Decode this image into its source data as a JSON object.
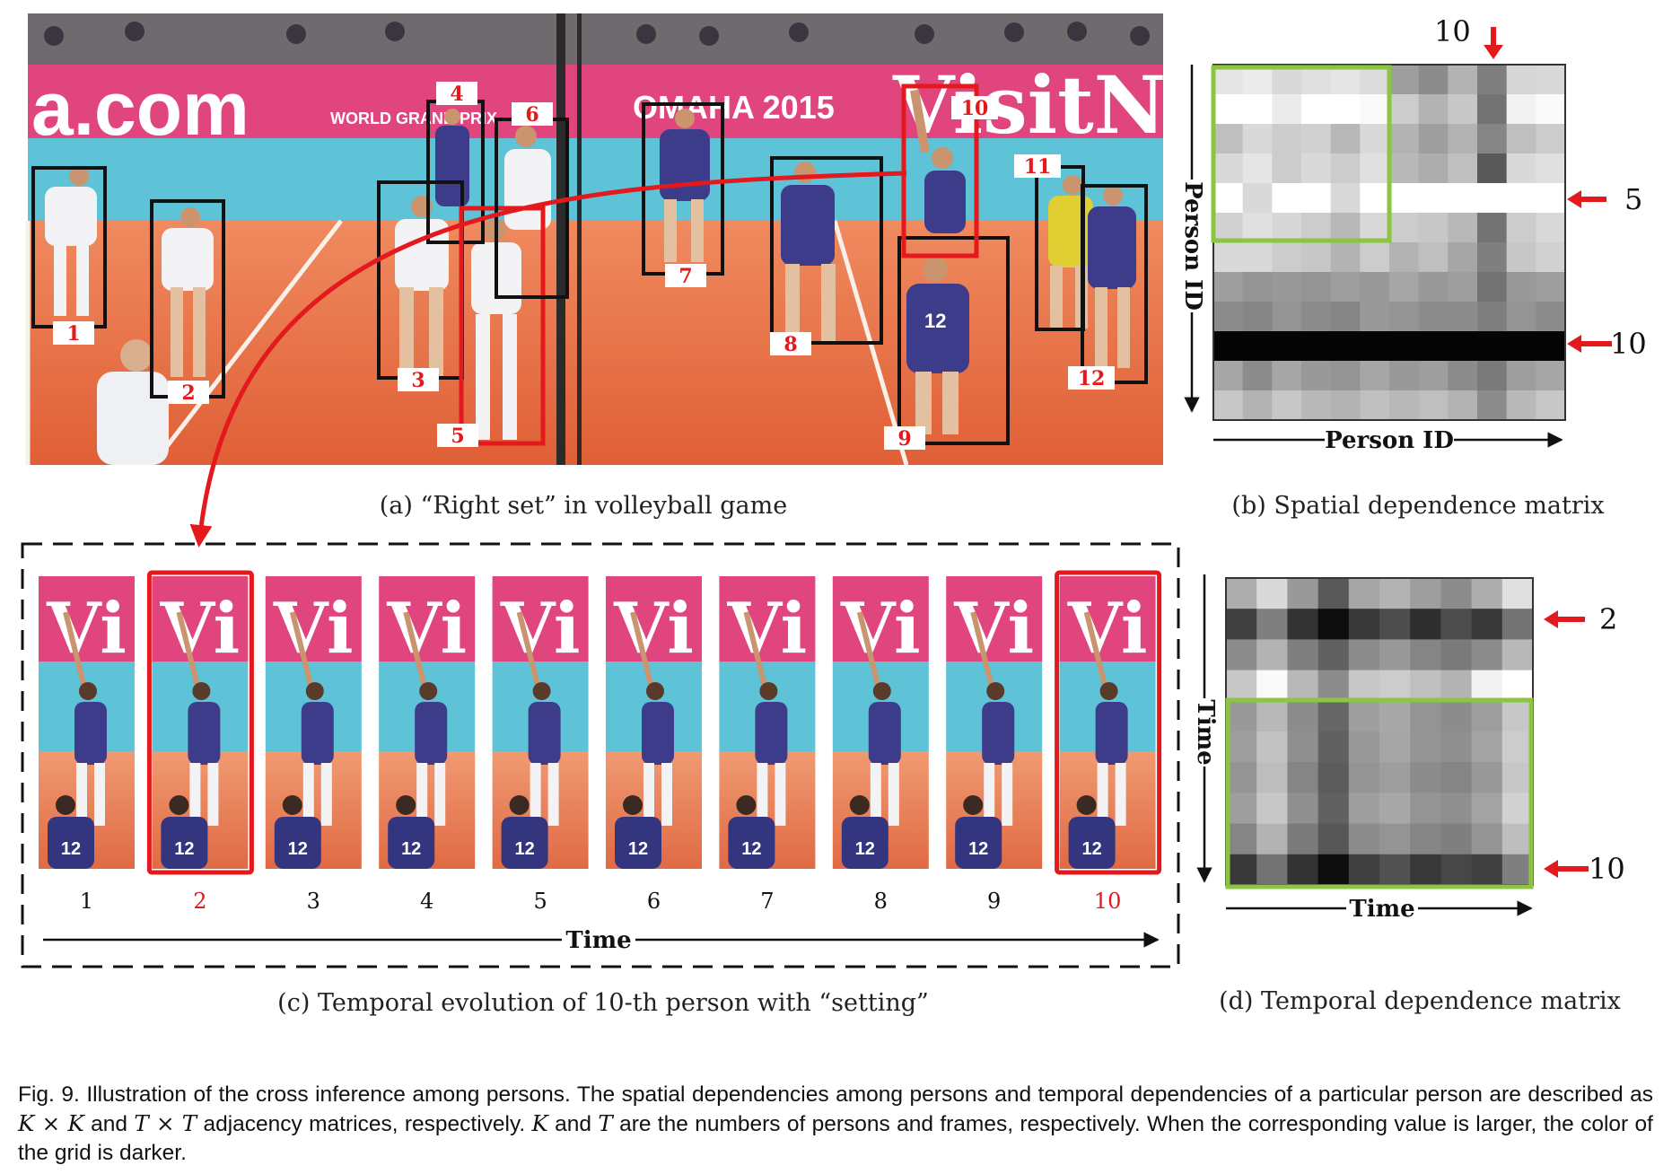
{
  "panel_a": {
    "caption": "(a) “Right set” in volleyball game",
    "banner_left": "a.com",
    "banner_mid": "WORLD GRAND PRIX",
    "banner_omaha": "OMAHA 2015",
    "banner_right": "VisitN",
    "persons": [
      {
        "id": "1",
        "highlight": false
      },
      {
        "id": "2",
        "highlight": false
      },
      {
        "id": "3",
        "highlight": false
      },
      {
        "id": "4",
        "highlight": false
      },
      {
        "id": "5",
        "highlight": true
      },
      {
        "id": "6",
        "highlight": false
      },
      {
        "id": "7",
        "highlight": false
      },
      {
        "id": "8",
        "highlight": false
      },
      {
        "id": "9",
        "highlight": false
      },
      {
        "id": "10",
        "highlight": true
      },
      {
        "id": "11",
        "highlight": false
      },
      {
        "id": "12",
        "highlight": false
      }
    ]
  },
  "panel_b": {
    "caption": "(b) Spatial dependence matrix",
    "x_label": "Person ID",
    "y_label": "Person ID",
    "top_marker": "10",
    "right_markers": [
      "5",
      "10"
    ],
    "grayscale": [
      [
        90,
        92,
        85,
        88,
        90,
        86,
        62,
        55,
        70,
        50,
        84,
        85
      ],
      [
        100,
        100,
        92,
        100,
        100,
        98,
        80,
        70,
        78,
        45,
        95,
        98
      ],
      [
        75,
        85,
        80,
        82,
        72,
        85,
        70,
        62,
        70,
        52,
        75,
        80
      ],
      [
        85,
        90,
        80,
        85,
        80,
        88,
        72,
        68,
        75,
        35,
        85,
        88
      ],
      [
        100,
        85,
        100,
        100,
        85,
        100,
        100,
        100,
        100,
        100,
        100,
        100
      ],
      [
        82,
        88,
        84,
        80,
        72,
        85,
        80,
        78,
        72,
        45,
        80,
        85
      ],
      [
        85,
        85,
        80,
        78,
        70,
        80,
        70,
        75,
        65,
        50,
        78,
        82
      ],
      [
        62,
        58,
        60,
        58,
        62,
        60,
        65,
        60,
        62,
        45,
        60,
        62
      ],
      [
        55,
        52,
        58,
        55,
        52,
        60,
        58,
        55,
        55,
        50,
        58,
        55
      ],
      [
        2,
        2,
        2,
        2,
        2,
        2,
        2,
        2,
        2,
        2,
        2,
        2
      ],
      [
        65,
        55,
        65,
        60,
        58,
        65,
        60,
        62,
        55,
        48,
        62,
        65
      ],
      [
        78,
        70,
        78,
        72,
        70,
        75,
        72,
        75,
        70,
        55,
        72,
        78
      ]
    ]
  },
  "panel_c": {
    "caption": "(c) Temporal evolution of 10-th person with “setting”",
    "axis_label": "Time",
    "frame_text": "Vi",
    "jersey_number": "12",
    "frames": [
      {
        "label": "1",
        "highlight": false
      },
      {
        "label": "2",
        "highlight": true
      },
      {
        "label": "3",
        "highlight": false
      },
      {
        "label": "4",
        "highlight": false
      },
      {
        "label": "5",
        "highlight": false
      },
      {
        "label": "6",
        "highlight": false
      },
      {
        "label": "7",
        "highlight": false
      },
      {
        "label": "8",
        "highlight": false
      },
      {
        "label": "9",
        "highlight": false
      },
      {
        "label": "10",
        "highlight": true
      }
    ]
  },
  "panel_d": {
    "caption": "(d) Temporal dependence matrix",
    "x_label": "Time",
    "y_label": "Time",
    "right_markers": [
      "2",
      "10"
    ],
    "grayscale": [
      [
        68,
        85,
        60,
        35,
        65,
        70,
        62,
        55,
        68,
        88
      ],
      [
        25,
        50,
        20,
        5,
        22,
        30,
        18,
        30,
        22,
        45
      ],
      [
        55,
        70,
        50,
        38,
        55,
        60,
        52,
        48,
        55,
        72
      ],
      [
        78,
        98,
        72,
        55,
        78,
        80,
        75,
        70,
        95,
        100
      ],
      [
        60,
        72,
        55,
        40,
        62,
        66,
        58,
        55,
        62,
        78
      ],
      [
        62,
        76,
        56,
        38,
        60,
        65,
        58,
        56,
        64,
        80
      ],
      [
        58,
        74,
        52,
        36,
        58,
        62,
        55,
        52,
        60,
        78
      ],
      [
        62,
        78,
        56,
        38,
        62,
        66,
        58,
        56,
        64,
        82
      ],
      [
        52,
        70,
        48,
        34,
        55,
        58,
        52,
        50,
        58,
        74
      ],
      [
        22,
        45,
        20,
        5,
        25,
        32,
        22,
        28,
        25,
        50
      ]
    ]
  },
  "caption_main": {
    "p1": "Fig. 9. Illustration of the cross inference among persons. The spatial dependencies among persons and temporal dependencies of a particular person are described as ",
    "m1": "K × K",
    "p2": " and ",
    "m2": "T × T",
    "p3": " adjacency matrices, respectively. ",
    "m3": "K",
    "p4": " and ",
    "m4": "T",
    "p5": " are the numbers of persons and frames, respectively. When the corresponding value is larger, the color of the grid is darker."
  },
  "colors": {
    "red": "#e3191e",
    "green": "#8cc63f",
    "court": "#e8734a",
    "banner": "#e0457e",
    "wall": "#5ec3d6"
  }
}
